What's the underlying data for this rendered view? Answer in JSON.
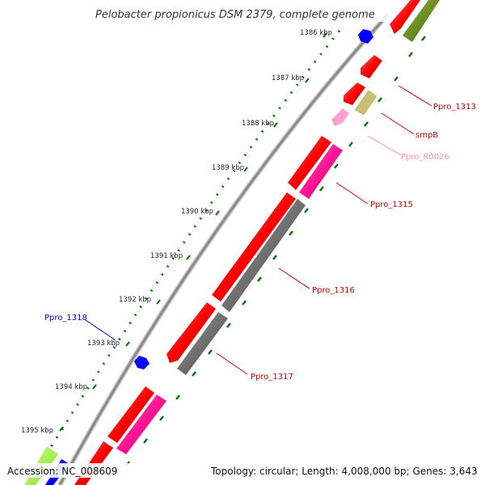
{
  "title": "Pelobacter propionicus DSM 2379, complete genome",
  "footer": {
    "accession": "Accession: NC_008609",
    "summary": "Topology: circular; Length: 4,008,000 bp; Genes: 3,643"
  },
  "scale_labels": [
    "1386 kbp",
    "1387 kbp",
    "1388 kbp",
    "1389 kbp",
    "1390 kbp",
    "1391 kbp",
    "1392 kbp",
    "1393 kbp",
    "1394 kbp",
    "1395 kbp"
  ],
  "gene_labels": [
    "Ppro_1313",
    "smpB",
    "Ppro_R0026",
    "Ppro_1315",
    "Ppro_1316",
    "Ppro_1317",
    "Ppro_1318"
  ],
  "colors": {
    "cds_red": "#ff0000",
    "cds_magenta": "#ff1493",
    "cds_gray": "#707070",
    "cds_olive": "#6b8e23",
    "cds_khaki": "#c8c070",
    "rna_pink": "#ffa0d0",
    "repeat_blue": "#0000ff",
    "lime": "#a0ff40",
    "tick_green": "#007700",
    "label_red": "#cc0000",
    "label_pink": "#ff88bb",
    "label_blue": "#0000cc"
  }
}
